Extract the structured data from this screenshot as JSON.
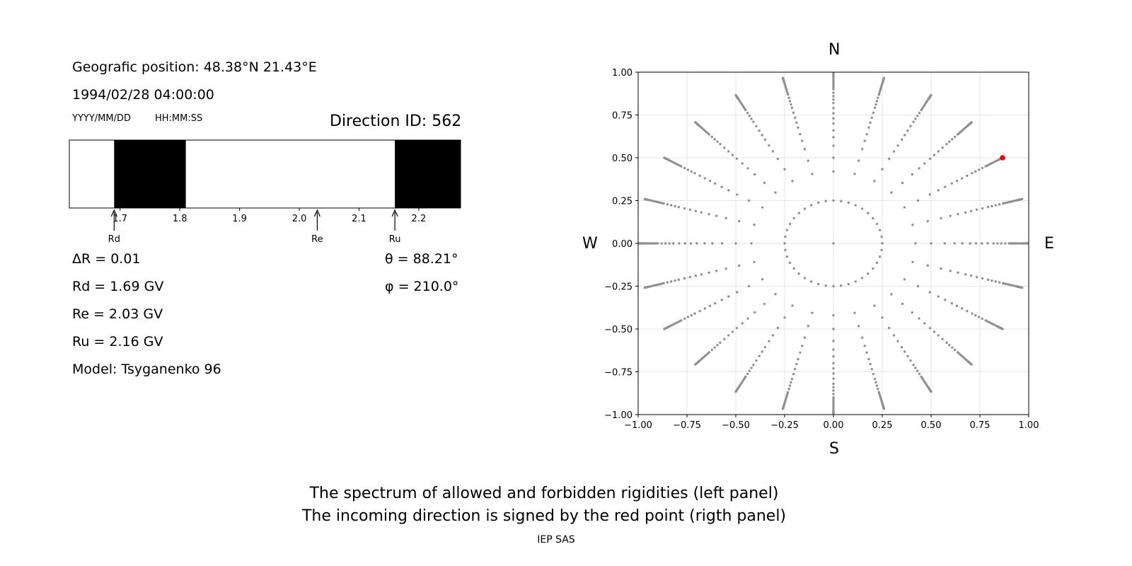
{
  "info": {
    "position": "Geografic position: 48.38°N 21.43°E",
    "datetime": "1994/02/28 04:00:00",
    "date_format": "YYYY/MM/DD",
    "time_format": "HH:MM:SS",
    "direction_id": "Direction ID: 562",
    "delta_r": "ΔR = 0.01",
    "rd": "Rd = 1.69 GV",
    "re": "Re = 2.03 GV",
    "ru": "Ru = 2.16 GV",
    "model": "Model: Tsyganenko 96",
    "theta": "θ = 88.21°",
    "phi": "φ = 210.0°"
  },
  "compass": {
    "n": "N",
    "s": "S",
    "w": "W",
    "e": "E"
  },
  "caption": {
    "line1": "The spectrum of allowed and forbidden rigidities (left panel)",
    "line2": "The incoming direction is signed by the red point (rigth panel)",
    "credit": "IEP SAS"
  },
  "chart_data": [
    {
      "type": "bar",
      "description": "rigidity spectrum band",
      "xlim": [
        1.615,
        2.27
      ],
      "xticks": [
        "1.7",
        "1.8",
        "1.9",
        "2.0",
        "2.1",
        "2.2"
      ],
      "xtick_values": [
        1.7,
        1.8,
        1.9,
        2.0,
        2.1,
        2.2
      ],
      "forbidden_intervals": [
        [
          1.69,
          1.81
        ],
        [
          2.16,
          2.27
        ]
      ],
      "markers": [
        {
          "label": "Rd",
          "value": 1.69
        },
        {
          "label": "Re",
          "value": 2.03
        },
        {
          "label": "Ru",
          "value": 2.16
        }
      ]
    },
    {
      "type": "scatter",
      "description": "incoming directions projection",
      "xlim": [
        -1.0,
        1.0
      ],
      "ylim": [
        -1.0,
        1.0
      ],
      "xticks": [
        "−1.00",
        "−0.75",
        "−0.50",
        "−0.25",
        "0.00",
        "0.25",
        "0.50",
        "0.75",
        "1.00"
      ],
      "yticks": [
        "1.00",
        "0.75",
        "0.50",
        "0.25",
        "0.00",
        "−0.25",
        "−0.50",
        "−0.75",
        "−1.00"
      ],
      "tick_values_x": [
        -1.0,
        -0.75,
        -0.5,
        -0.25,
        0.0,
        0.25,
        0.5,
        0.75,
        1.0
      ],
      "tick_values_y": [
        1.0,
        0.75,
        0.5,
        0.25,
        0.0,
        -0.25,
        -0.5,
        -0.75,
        -1.0
      ],
      "grid": true,
      "point_color": "#909090",
      "highlight_color": "#ff0000",
      "azimuth_step_deg": 15,
      "radii": [
        0.0,
        0.25,
        0.42,
        0.5,
        0.57,
        0.62,
        0.66,
        0.7,
        0.73,
        0.76,
        0.79,
        0.82,
        0.84,
        0.86,
        0.88,
        0.9,
        0.91,
        0.92,
        0.93,
        0.94,
        0.95,
        0.96,
        0.97,
        0.975,
        0.98,
        0.985,
        0.99,
        0.995,
        1.0
      ],
      "inner_ring_radius": 0.25,
      "inner_ring_azimuth_step_deg": 9,
      "highlight": {
        "x": 0.866,
        "y": 0.5
      }
    }
  ]
}
